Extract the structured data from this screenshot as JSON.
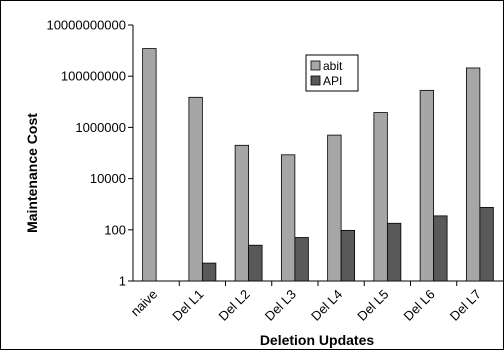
{
  "chart_data": {
    "type": "bar",
    "scale": "log",
    "categories": [
      "naive",
      "Del L1",
      "Del L2",
      "Del L3",
      "Del L4",
      "Del L5",
      "Del L6",
      "Del L7"
    ],
    "series": [
      {
        "name": "abit",
        "values": [
          1200000000,
          15000000,
          200000,
          85000,
          500000,
          3800000,
          28000000,
          210000000
        ]
      },
      {
        "name": "API",
        "values": [
          null,
          5,
          25,
          50,
          95,
          180,
          350,
          750
        ]
      }
    ],
    "ytick_labels": [
      "10000000000",
      "100000000",
      "1000000",
      "10000",
      "100",
      "1"
    ],
    "ylim": [
      1,
      10000000000
    ],
    "xlabel": "Deletion Updates",
    "ylabel": "Maintenance Cost",
    "legend_position": "top-center",
    "grid": false,
    "colors": {
      "abit": "#a6a6a6",
      "API": "#595959"
    }
  }
}
